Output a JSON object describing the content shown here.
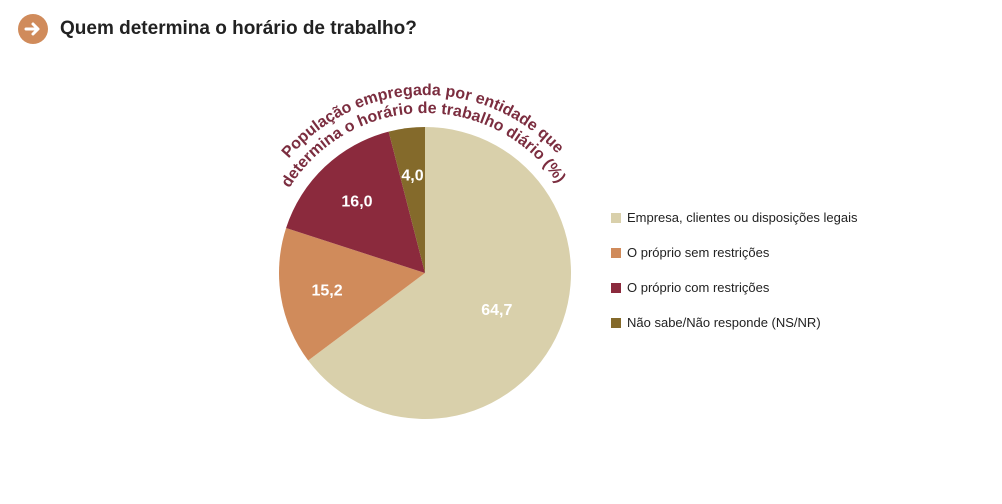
{
  "header": {
    "title": "Quem determina o horário de trabalho?",
    "icon": "arrow-right-circle-icon",
    "icon_color": "#d08b5b"
  },
  "chart_data": {
    "type": "pie",
    "title_lines": [
      "População empregada por entidade que",
      "determina o horário de trabalho diário (%)"
    ],
    "title_color": "#7b2d3f",
    "unit": "%",
    "start": "12 o'clock, clockwise",
    "slices": [
      {
        "label": "Empresa, clientes ou disposições legais",
        "value": 64.7,
        "display": "64,7",
        "color": "#d9d0ab",
        "label_color": "#ffffff"
      },
      {
        "label": "O próprio sem restrições",
        "value": 15.2,
        "display": "15,2",
        "color": "#d08b5b",
        "label_color": "#ffffff"
      },
      {
        "label": "O próprio com restrições",
        "value": 16.0,
        "display": "16,0",
        "color": "#8b2a3d",
        "label_color": "#ffffff"
      },
      {
        "label": "Não sabe/Não responde (NS/NR)",
        "value": 4.0,
        "display": "4,0",
        "color": "#846a2b",
        "label_color": "#ffffff"
      }
    ],
    "legend_position": "right"
  }
}
